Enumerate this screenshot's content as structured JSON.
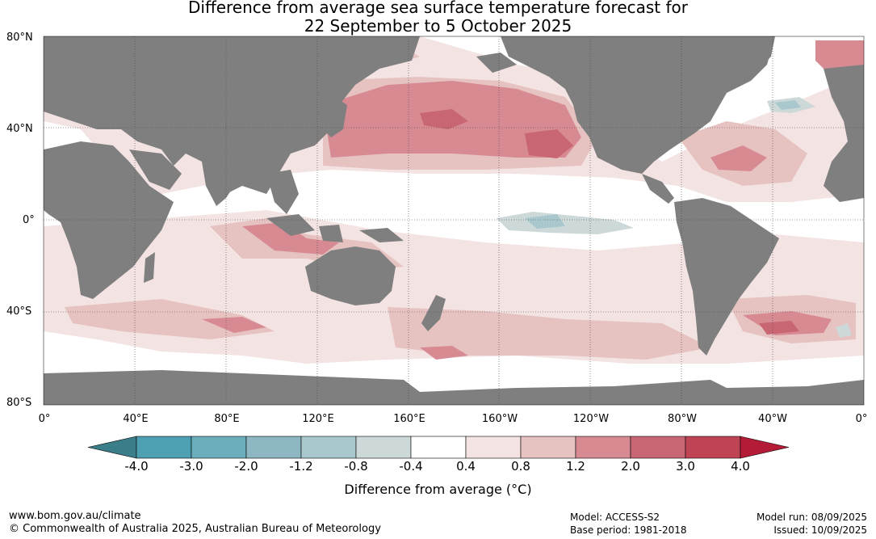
{
  "title": {
    "line1": "Difference from average sea surface temperature forecast for",
    "line2": "22 September to 5 October 2025"
  },
  "map": {
    "lat_labels": [
      "80°N",
      "40°N",
      "0°",
      "40°S",
      "80°S"
    ],
    "lon_labels": [
      "0°",
      "40°E",
      "80°E",
      "120°E",
      "160°E",
      "160°W",
      "120°W",
      "80°W",
      "40°W",
      "0°"
    ],
    "land_color": "#7f7f7f",
    "ocean_color": "#ffffff"
  },
  "colorbar": {
    "label": "Difference from average (°C)",
    "ticks": [
      "-4.0",
      "-3.0",
      "-2.0",
      "-1.2",
      "-0.8",
      "-0.4",
      "0.4",
      "0.8",
      "1.2",
      "2.0",
      "3.0",
      "4.0"
    ],
    "colors": [
      "#3a7e8a",
      "#4da0b2",
      "#6aaebb",
      "#8cb7c3",
      "#a9c8cd",
      "#cdd9d9",
      "#ffffff",
      "#f3e3e2",
      "#e6c3c1",
      "#d88a93",
      "#c86673",
      "#be4453",
      "#b31b36"
    ]
  },
  "footer": {
    "website": "www.bom.gov.au/climate",
    "copyright": "© Commonwealth of Australia 2025, Australian Bureau of Meteorology",
    "model": "Model: ACCESS-S2",
    "base_period": "Base period: 1981-2018",
    "model_run": "Model run: 08/09/2025",
    "issued": "Issued: 10/09/2025"
  }
}
